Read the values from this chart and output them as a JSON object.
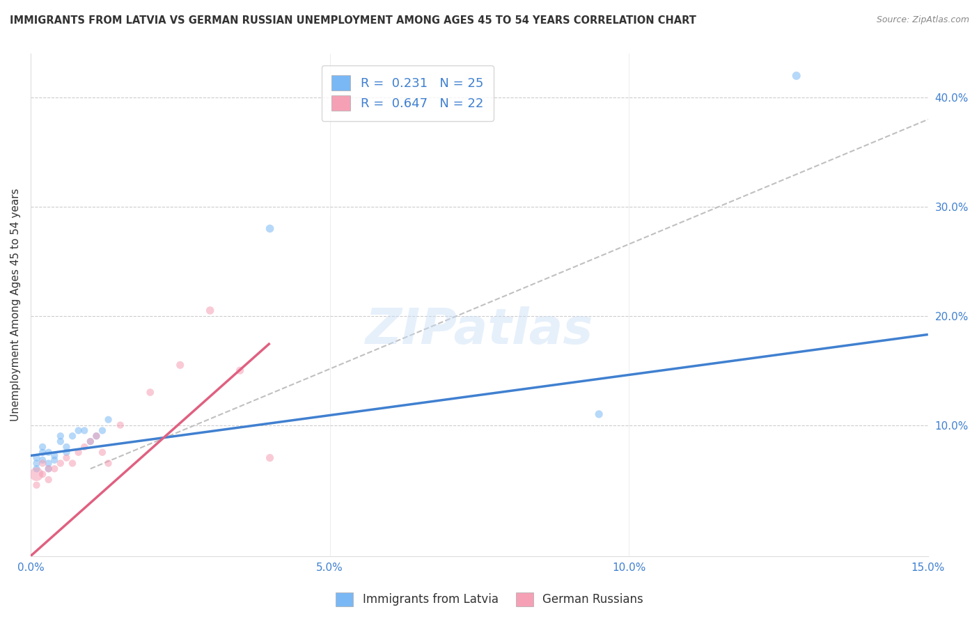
{
  "title": "IMMIGRANTS FROM LATVIA VS GERMAN RUSSIAN UNEMPLOYMENT AMONG AGES 45 TO 54 YEARS CORRELATION CHART",
  "source": "Source: ZipAtlas.com",
  "ylabel": "Unemployment Among Ages 45 to 54 years",
  "xlim": [
    0.0,
    0.15
  ],
  "ylim": [
    -0.02,
    0.44
  ],
  "x_ticks": [
    0.0,
    0.025,
    0.05,
    0.075,
    0.1,
    0.125,
    0.15
  ],
  "x_tick_labels": [
    "0.0%",
    "",
    "5.0%",
    "",
    "10.0%",
    "",
    "15.0%"
  ],
  "y_ticks_right": [
    0.1,
    0.2,
    0.3,
    0.4
  ],
  "y_tick_labels_right": [
    "10.0%",
    "20.0%",
    "30.0%",
    "40.0%"
  ],
  "grid_color": "#cccccc",
  "background_color": "#ffffff",
  "watermark": "ZIPatlas",
  "legend_label1": "Immigrants from Latvia",
  "legend_label2": "German Russians",
  "blue_color": "#7ab8f5",
  "pink_color": "#f5a0b5",
  "blue_line_color": "#4080d0",
  "pink_line_color": "#e06080",
  "diag_line_color": "#c0c0c0",
  "tick_color": "#4080d0",
  "latvia_x": [
    0.001,
    0.001,
    0.001,
    0.002,
    0.002,
    0.002,
    0.003,
    0.003,
    0.003,
    0.004,
    0.004,
    0.005,
    0.005,
    0.006,
    0.006,
    0.007,
    0.008,
    0.009,
    0.01,
    0.011,
    0.012,
    0.013,
    0.04,
    0.095,
    0.128
  ],
  "latvia_y": [
    0.065,
    0.07,
    0.06,
    0.075,
    0.068,
    0.08,
    0.06,
    0.065,
    0.075,
    0.072,
    0.068,
    0.085,
    0.09,
    0.08,
    0.075,
    0.09,
    0.095,
    0.095,
    0.085,
    0.09,
    0.095,
    0.105,
    0.28,
    0.11,
    0.42
  ],
  "latvia_sizes": [
    55,
    55,
    55,
    55,
    55,
    55,
    55,
    55,
    55,
    55,
    55,
    55,
    55,
    55,
    55,
    55,
    55,
    55,
    55,
    55,
    55,
    55,
    70,
    65,
    75
  ],
  "german_x": [
    0.001,
    0.001,
    0.002,
    0.002,
    0.003,
    0.003,
    0.004,
    0.005,
    0.006,
    0.007,
    0.008,
    0.009,
    0.01,
    0.011,
    0.012,
    0.013,
    0.015,
    0.02,
    0.025,
    0.03,
    0.035,
    0.04
  ],
  "german_y": [
    0.045,
    0.055,
    0.055,
    0.065,
    0.05,
    0.06,
    0.06,
    0.065,
    0.07,
    0.065,
    0.075,
    0.08,
    0.085,
    0.09,
    0.075,
    0.065,
    0.1,
    0.13,
    0.155,
    0.205,
    0.15,
    0.07
  ],
  "german_sizes": [
    55,
    200,
    55,
    55,
    55,
    55,
    55,
    55,
    55,
    55,
    55,
    55,
    55,
    55,
    55,
    55,
    55,
    60,
    65,
    70,
    65,
    65
  ],
  "blue_line_x": [
    0.0,
    0.15
  ],
  "blue_line_y": [
    0.072,
    0.183
  ],
  "pink_line_x": [
    0.0,
    0.04
  ],
  "pink_line_y": [
    -0.02,
    0.175
  ],
  "diag_line_x": [
    0.01,
    0.15
  ],
  "diag_line_y": [
    0.06,
    0.38
  ]
}
